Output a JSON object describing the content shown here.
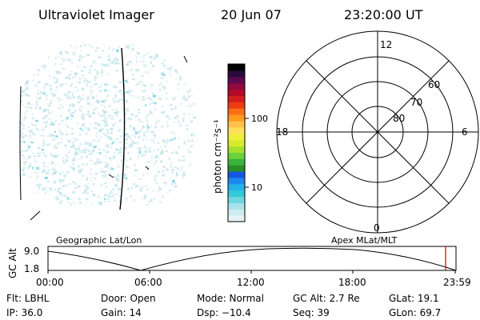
{
  "header": {
    "instrument": "Ultraviolet Imager",
    "date": "20 Jun 07",
    "time": "23:20:00 UT"
  },
  "colorbar": {
    "unit_label": "photon cm⁻²s⁻¹",
    "ticks": [
      {
        "label": "100",
        "value": 100
      },
      {
        "label": "10",
        "value": 10
      }
    ],
    "colors": [
      "#e6f3f5",
      "#cfecef",
      "#a8e2ea",
      "#6fd6e0",
      "#33c9d6",
      "#22b4e8",
      "#1e88f0",
      "#1656e0",
      "#2a8c2a",
      "#3cb43c",
      "#6cd23c",
      "#a6e02c",
      "#d8ea2c",
      "#f0f03c",
      "#ffe05a",
      "#ffc24a",
      "#ff9a1e",
      "#ff6e14",
      "#f03c14",
      "#d21e1e",
      "#b40a28",
      "#8c0a3c",
      "#5a0a50",
      "#2a0a3c",
      "#000000"
    ]
  },
  "polar_plot": {
    "mlt_labels": {
      "top": "12",
      "left": "18",
      "right": "6",
      "bottom": "0"
    },
    "lat_labels": [
      "60",
      "70",
      "80"
    ]
  },
  "timeline": {
    "left_title": "Geographic Lat/Lon",
    "right_title": "Apex MLat/MLT",
    "axis_label": "GC Alt",
    "y_ticks": [
      "9.0",
      "1.8"
    ],
    "x_ticks": [
      "00:00",
      "06:00",
      "12:00",
      "18:00",
      "23:59"
    ]
  },
  "info": {
    "filter": "Flt: LBHL",
    "ip": "IP: 36.0",
    "door": "Door: Open",
    "gain": "Gain: 14",
    "mode": "Mode: Normal",
    "dsp": "Dsp:  −10.4",
    "gc_alt": "GC Alt: 2.7 Re",
    "seq": "Seq: 39",
    "glat": "GLat:  19.1",
    "glon": "GLon:  69.7"
  },
  "colors": {
    "image_speckle": "#c8e6ea",
    "image_speckle_bright": "#7ed6e6",
    "marker_red": "#c00000"
  }
}
